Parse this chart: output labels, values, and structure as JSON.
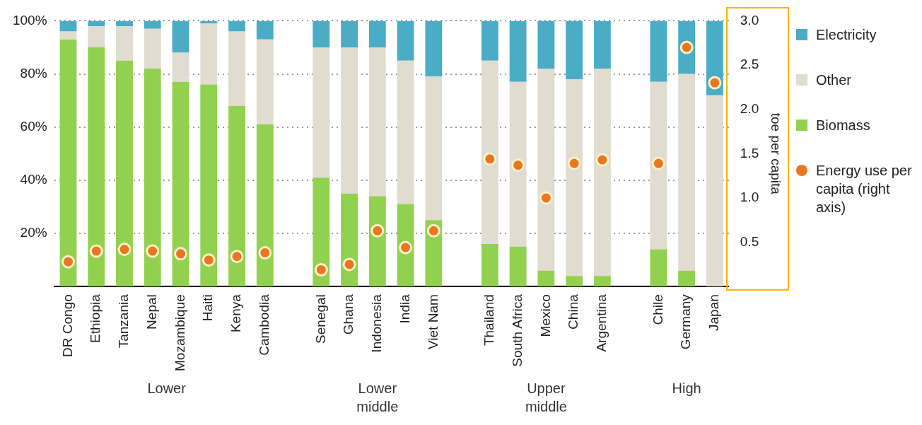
{
  "chart_data": {
    "type": "bar",
    "stacked": true,
    "categories": [
      "DR Congo",
      "Ethiopia",
      "Tanzania",
      "Nepal",
      "Mozambique",
      "Haiti",
      "Kenya",
      "Cambodia",
      null,
      "Senegal",
      "Ghana",
      "Indonesia",
      "India",
      "Viet Nam",
      null,
      "Thailand",
      "South Africa",
      "Mexico",
      "China",
      "Argentina",
      null,
      "Chile",
      "Germany",
      "Japan"
    ],
    "series": [
      {
        "name": "Biomass",
        "color": "#92d050",
        "values": [
          93,
          90,
          85,
          82,
          77,
          76,
          68,
          61,
          null,
          41,
          35,
          34,
          31,
          25,
          null,
          16,
          15,
          6,
          4,
          4,
          null,
          14,
          6,
          0
        ]
      },
      {
        "name": "Other",
        "color": "#e0dcd0",
        "values": [
          3,
          8,
          13,
          15,
          11,
          23,
          28,
          32,
          null,
          49,
          55,
          56,
          54,
          54,
          null,
          69,
          62,
          76,
          74,
          78,
          null,
          63,
          74,
          72
        ]
      },
      {
        "name": "Electricity",
        "color": "#4bacc6",
        "values": [
          4,
          2,
          2,
          3,
          12,
          1,
          4,
          7,
          null,
          10,
          10,
          10,
          15,
          21,
          null,
          15,
          23,
          18,
          22,
          18,
          null,
          23,
          20,
          28
        ]
      },
      {
        "name": "Energy use per capita (right axis)",
        "type": "scatter",
        "axis": "y2",
        "color": "#e87722",
        "values": [
          0.28,
          0.4,
          0.42,
          0.4,
          0.37,
          0.3,
          0.34,
          0.38,
          null,
          0.19,
          0.25,
          0.63,
          0.44,
          0.63,
          null,
          1.44,
          1.37,
          1.0,
          1.39,
          1.43,
          null,
          1.39,
          2.7,
          2.3
        ]
      }
    ],
    "ylim": [
      0,
      100
    ],
    "yticks": [
      {
        "value": 20,
        "label": "20%"
      },
      {
        "value": 40,
        "label": "40%"
      },
      {
        "value": 60,
        "label": "60%"
      },
      {
        "value": 80,
        "label": "80%"
      },
      {
        "value": 100,
        "label": "100%"
      }
    ],
    "y2lim": [
      0,
      3
    ],
    "y2ticks": [
      {
        "value": 0.5,
        "label": "0.5"
      },
      {
        "value": 1,
        "label": "1.0"
      },
      {
        "value": 1.5,
        "label": "1.5"
      },
      {
        "value": 2,
        "label": "2.0"
      },
      {
        "value": 2.5,
        "label": "2.5"
      },
      {
        "value": 3,
        "label": "3.0"
      }
    ],
    "y2label": "toe per capita",
    "grid": "y",
    "legend": "right",
    "marker": "circle",
    "annotations": [
      "Lower",
      "Lower middle",
      "Upper middle",
      "High"
    ]
  }
}
